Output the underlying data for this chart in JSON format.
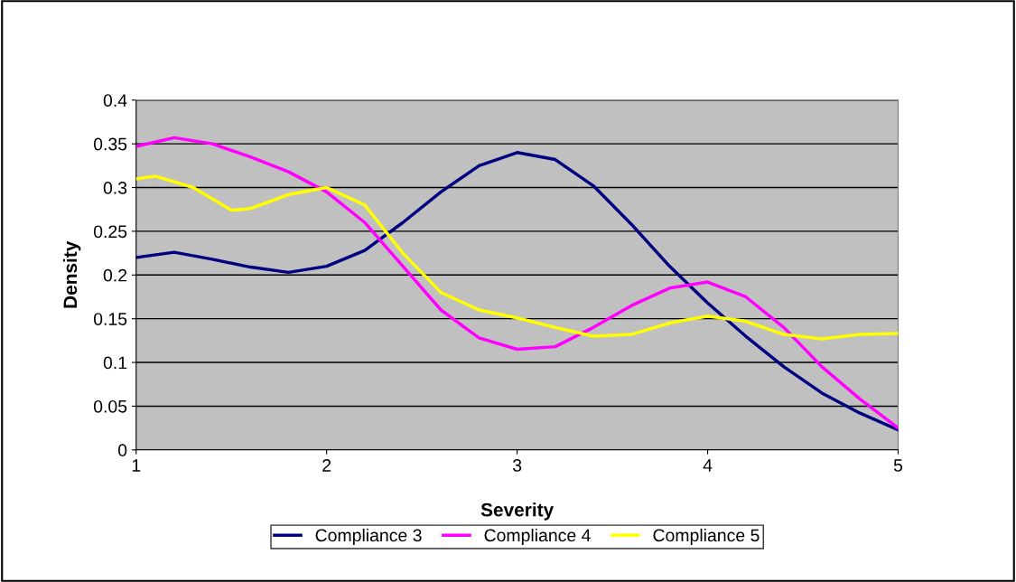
{
  "chart_data": {
    "type": "line",
    "xlabel": "Severity",
    "ylabel": "Density",
    "x": [
      1,
      1.2,
      1.4,
      1.6,
      1.8,
      2.0,
      2.2,
      2.4,
      2.6,
      2.8,
      3.0,
      3.2,
      3.4,
      3.6,
      3.8,
      4.0,
      4.2,
      4.4,
      4.6,
      4.8,
      5.0
    ],
    "series": [
      {
        "name": "Compliance 3",
        "color": "#000080",
        "values": [
          0.22,
          0.226,
          0.218,
          0.209,
          0.203,
          0.21,
          0.228,
          0.26,
          0.295,
          0.325,
          0.34,
          0.332,
          0.302,
          0.258,
          0.21,
          0.168,
          0.13,
          0.095,
          0.065,
          0.042,
          0.023
        ]
      },
      {
        "name": "Compliance 4",
        "color": "#ff00ff",
        "values": [
          0.347,
          0.357,
          0.35,
          0.335,
          0.318,
          0.295,
          0.26,
          0.21,
          0.16,
          0.128,
          0.115,
          0.118,
          0.14,
          0.165,
          0.185,
          0.192,
          0.175,
          0.14,
          0.095,
          0.058,
          0.025
        ]
      },
      {
        "name": "Compliance 5",
        "color": "#ffff00",
        "x": [
          1,
          1.1,
          1.3,
          1.5,
          1.6,
          1.8,
          2.0,
          2.2,
          2.4,
          2.6,
          2.8,
          3.0,
          3.2,
          3.4,
          3.6,
          3.8,
          4.0,
          4.2,
          4.4,
          4.6,
          4.8,
          5.0
        ],
        "values": [
          0.31,
          0.313,
          0.3,
          0.274,
          0.276,
          0.292,
          0.3,
          0.28,
          0.225,
          0.18,
          0.16,
          0.151,
          0.14,
          0.13,
          0.132,
          0.145,
          0.153,
          0.147,
          0.132,
          0.127,
          0.132,
          0.133
        ]
      }
    ],
    "xlim": [
      1,
      5
    ],
    "xticks": [
      1,
      2,
      3,
      4,
      5
    ],
    "ylim": [
      0,
      0.4
    ],
    "yticks": [
      0,
      0.05,
      0.1,
      0.15,
      0.2,
      0.25,
      0.3,
      0.35,
      0.4
    ],
    "grid": "y",
    "legend": "bottom",
    "marker": "none",
    "line_style": "solid"
  }
}
